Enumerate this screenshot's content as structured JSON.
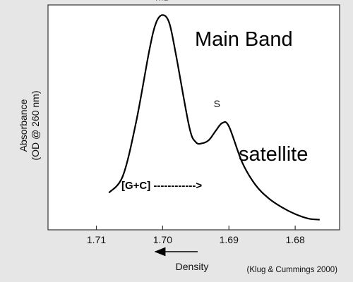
{
  "chart_data": {
    "type": "line",
    "title": "",
    "xlabel": "Density",
    "ylabel_line1": "Absorbance",
    "ylabel_line2": "(OD @ 260 nm)",
    "x_reversed": true,
    "xlim": [
      1.7173,
      1.6733
    ],
    "ylim": [
      0,
      1
    ],
    "xticks": [
      1.71,
      1.7,
      1.69,
      1.68
    ],
    "xtick_labels": [
      "1.71",
      "1.70",
      "1.69",
      "1.68"
    ],
    "series": [
      {
        "x": [
          1.7081,
          1.706,
          1.704,
          1.702,
          1.701,
          1.7,
          1.699,
          1.698,
          1.696,
          1.695,
          1.694,
          1.693,
          1.692,
          1.691,
          1.69,
          1.688,
          1.686,
          1.684,
          1.682,
          1.68,
          1.678,
          1.6763
        ],
        "y": [
          0.165,
          0.24,
          0.48,
          0.8,
          0.92,
          0.955,
          0.92,
          0.78,
          0.46,
          0.39,
          0.385,
          0.4,
          0.44,
          0.475,
          0.46,
          0.3,
          0.2,
          0.14,
          0.1,
          0.07,
          0.05,
          0.045
        ]
      }
    ],
    "peak_labels": [
      {
        "text": "MB",
        "x": 1.7,
        "y": 1.02
      },
      {
        "text": "S",
        "x": 1.6918,
        "y": 0.545
      }
    ],
    "annotations": {
      "main_band": "Main Band",
      "satellite": "satellite",
      "gc": "[G+C] ------------>"
    },
    "grid": false,
    "legend": "none"
  },
  "citation": "(Klug & Cummings 2000)",
  "colors": {
    "background": "#e6e6e6",
    "plot_area": "#ffffff",
    "line": "#000000"
  }
}
